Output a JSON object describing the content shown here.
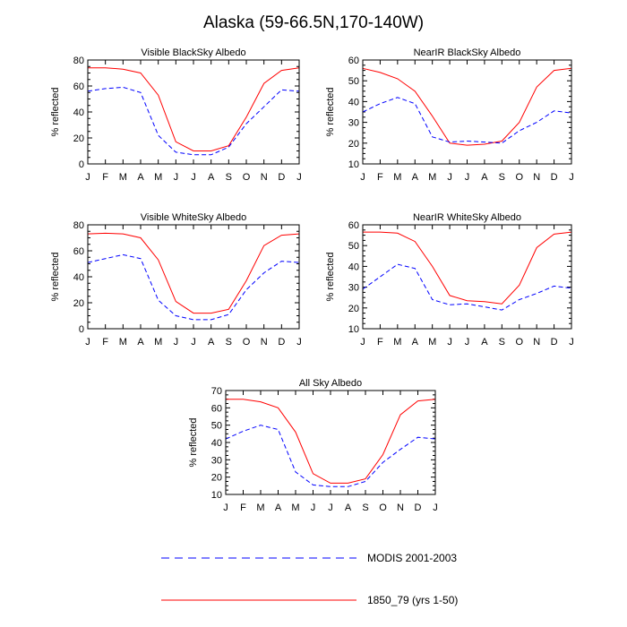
{
  "figure": {
    "title": "Alaska (59-66.5N,170-140W)"
  },
  "legend": [
    {
      "label": "MODIS 2001-2003",
      "color": "#0000ff",
      "style": "dashed"
    },
    {
      "label": "1850_79 (yrs 1-50)",
      "color": "#ff0000",
      "style": "solid"
    }
  ],
  "chart_data": [
    {
      "type": "line",
      "title": "Visible BlackSky Albedo",
      "ylabel": "% reflected",
      "categories": [
        "J",
        "F",
        "M",
        "A",
        "M",
        "J",
        "J",
        "A",
        "S",
        "O",
        "N",
        "D",
        "J"
      ],
      "ylim": [
        0,
        80
      ],
      "yticks": [
        0,
        20,
        40,
        60,
        80
      ],
      "series": [
        {
          "name": "1850_79 (yrs 1-50)",
          "color": "#ff0000",
          "style": "solid",
          "values": [
            74,
            74,
            73,
            70,
            53,
            17,
            10,
            10,
            14,
            36,
            62,
            72,
            74
          ]
        },
        {
          "name": "MODIS 2001-2003",
          "color": "#0000ff",
          "style": "dashed",
          "values": [
            56,
            58,
            59,
            55,
            22,
            9,
            7,
            7,
            13,
            31,
            44,
            57,
            56
          ]
        }
      ]
    },
    {
      "type": "line",
      "title": "NearIR BlackSky Albedo",
      "ylabel": "% reflected",
      "categories": [
        "J",
        "F",
        "M",
        "A",
        "M",
        "J",
        "J",
        "A",
        "S",
        "O",
        "N",
        "D",
        "J"
      ],
      "ylim": [
        10,
        60
      ],
      "yticks": [
        10,
        20,
        30,
        40,
        50,
        60
      ],
      "series": [
        {
          "name": "1850_79 (yrs 1-50)",
          "color": "#ff0000",
          "style": "solid",
          "values": [
            56,
            54,
            51,
            45,
            33,
            20,
            19,
            19.5,
            21,
            30,
            47,
            55,
            56
          ]
        },
        {
          "name": "MODIS 2001-2003",
          "color": "#0000ff",
          "style": "dashed",
          "values": [
            35,
            39,
            42,
            39,
            23,
            20.5,
            21,
            20.5,
            20,
            26,
            30,
            35.5,
            34.5
          ]
        }
      ]
    },
    {
      "type": "line",
      "title": "Visible WhiteSky Albedo",
      "ylabel": "% reflected",
      "categories": [
        "J",
        "F",
        "M",
        "A",
        "M",
        "J",
        "J",
        "A",
        "S",
        "O",
        "N",
        "D",
        "J"
      ],
      "ylim": [
        0,
        80
      ],
      "yticks": [
        0,
        20,
        40,
        60,
        80
      ],
      "series": [
        {
          "name": "1850_79 (yrs 1-50)",
          "color": "#ff0000",
          "style": "solid",
          "values": [
            73,
            73.5,
            73,
            70,
            53,
            21,
            12,
            12,
            15,
            37,
            64,
            72,
            73
          ]
        },
        {
          "name": "MODIS 2001-2003",
          "color": "#0000ff",
          "style": "dashed",
          "values": [
            51,
            54,
            57,
            54,
            22,
            10,
            7,
            7,
            11,
            30,
            43,
            52,
            51
          ]
        }
      ]
    },
    {
      "type": "line",
      "title": "NearIR WhiteSky Albedo",
      "ylabel": "% reflected",
      "categories": [
        "J",
        "F",
        "M",
        "A",
        "M",
        "J",
        "J",
        "A",
        "S",
        "O",
        "N",
        "D",
        "J"
      ],
      "ylim": [
        10,
        60
      ],
      "yticks": [
        10,
        20,
        30,
        40,
        50,
        60
      ],
      "series": [
        {
          "name": "1850_79 (yrs 1-50)",
          "color": "#ff0000",
          "style": "solid",
          "values": [
            56.5,
            56.5,
            56,
            52,
            40,
            26,
            23.5,
            23,
            22,
            31,
            49,
            55.5,
            56.5
          ]
        },
        {
          "name": "MODIS 2001-2003",
          "color": "#0000ff",
          "style": "dashed",
          "values": [
            29,
            35,
            41,
            39,
            24,
            21.5,
            22,
            20.5,
            19,
            24,
            27,
            30.5,
            29.5
          ]
        }
      ]
    },
    {
      "type": "line",
      "title": "All Sky Albedo",
      "ylabel": "% reflected",
      "categories": [
        "J",
        "F",
        "M",
        "A",
        "M",
        "J",
        "J",
        "A",
        "S",
        "O",
        "N",
        "D",
        "J"
      ],
      "ylim": [
        10,
        70
      ],
      "yticks": [
        10,
        20,
        30,
        40,
        50,
        60,
        70
      ],
      "series": [
        {
          "name": "1850_79 (yrs 1-50)",
          "color": "#ff0000",
          "style": "solid",
          "values": [
            65,
            65,
            63.5,
            60,
            46,
            22,
            16.5,
            16.5,
            19,
            33,
            56,
            64,
            65
          ]
        },
        {
          "name": "MODIS 2001-2003",
          "color": "#0000ff",
          "style": "dashed",
          "values": [
            42,
            46.5,
            50,
            47.5,
            23,
            15.5,
            14.5,
            14.5,
            17.5,
            28.5,
            36,
            43,
            42
          ]
        }
      ]
    }
  ]
}
